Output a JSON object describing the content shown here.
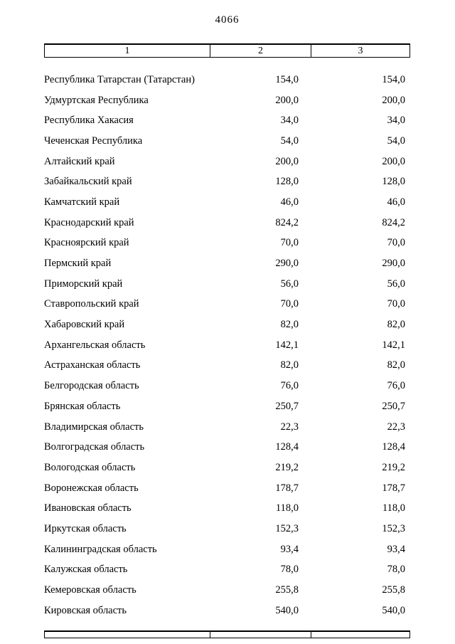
{
  "page": {
    "number": "4066"
  },
  "table": {
    "headers": [
      "1",
      "2",
      "3"
    ],
    "rows": [
      {
        "name": "Республика Татарстан (Татарстан)",
        "c2": "154,0",
        "c3": "154,0"
      },
      {
        "name": "Удмуртская Республика",
        "c2": "200,0",
        "c3": "200,0"
      },
      {
        "name": "Республика Хакасия",
        "c2": "34,0",
        "c3": "34,0"
      },
      {
        "name": "Чеченская Республика",
        "c2": "54,0",
        "c3": "54,0"
      },
      {
        "name": "Алтайский край",
        "c2": "200,0",
        "c3": "200,0"
      },
      {
        "name": "Забайкальский край",
        "c2": "128,0",
        "c3": "128,0"
      },
      {
        "name": "Камчатский край",
        "c2": "46,0",
        "c3": "46,0"
      },
      {
        "name": "Краснодарский край",
        "c2": "824,2",
        "c3": "824,2"
      },
      {
        "name": "Красноярский край",
        "c2": "70,0",
        "c3": "70,0"
      },
      {
        "name": "Пермский край",
        "c2": "290,0",
        "c3": "290,0"
      },
      {
        "name": "Приморский край",
        "c2": "56,0",
        "c3": "56,0"
      },
      {
        "name": "Ставропольский край",
        "c2": "70,0",
        "c3": "70,0"
      },
      {
        "name": "Хабаровский край",
        "c2": "82,0",
        "c3": "82,0"
      },
      {
        "name": "Архангельская область",
        "c2": "142,1",
        "c3": "142,1"
      },
      {
        "name": "Астраханская область",
        "c2": "82,0",
        "c3": "82,0"
      },
      {
        "name": "Белгородская область",
        "c2": "76,0",
        "c3": "76,0"
      },
      {
        "name": "Брянская область",
        "c2": "250,7",
        "c3": "250,7"
      },
      {
        "name": "Владимирская область",
        "c2": "22,3",
        "c3": "22,3"
      },
      {
        "name": "Волгоградская область",
        "c2": "128,4",
        "c3": "128,4"
      },
      {
        "name": "Вологодская область",
        "c2": "219,2",
        "c3": "219,2"
      },
      {
        "name": "Воронежская область",
        "c2": "178,7",
        "c3": "178,7"
      },
      {
        "name": "Ивановская область",
        "c2": "118,0",
        "c3": "118,0"
      },
      {
        "name": "Иркутская область",
        "c2": "152,3",
        "c3": "152,3"
      },
      {
        "name": "Калининградская область",
        "c2": "93,4",
        "c3": "93,4"
      },
      {
        "name": "Калужская область",
        "c2": "78,0",
        "c3": "78,0"
      },
      {
        "name": "Кемеровская область",
        "c2": "255,8",
        "c3": "255,8"
      },
      {
        "name": "Кировская область",
        "c2": "540,0",
        "c3": "540,0"
      }
    ]
  }
}
